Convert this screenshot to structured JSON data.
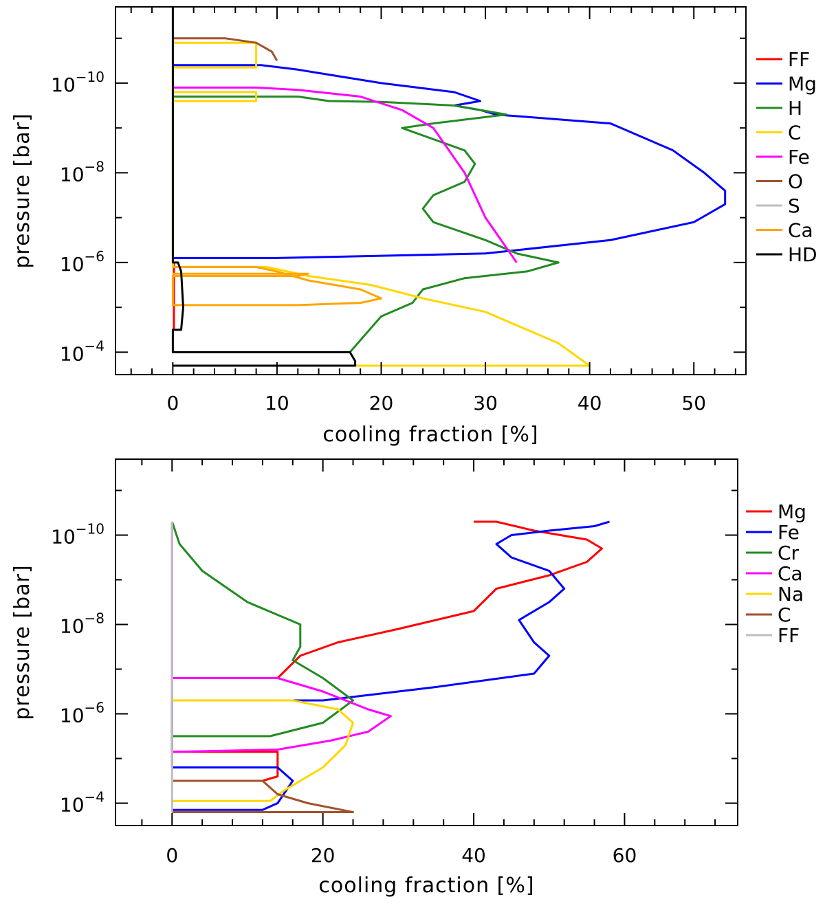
{
  "chart_data": [
    {
      "type": "line",
      "xlabel": "cooling fraction [%]",
      "ylabel": "pressure [bar]",
      "xlim": [
        -5.5,
        55
      ],
      "ylim_log10": [
        -11.7,
        -3.5
      ],
      "x_ticks": [
        0,
        10,
        20,
        30,
        40,
        50
      ],
      "x_tick_labels": [
        "0",
        "10",
        "20",
        "30",
        "40",
        "50"
      ],
      "y_ticks_log10": [
        -10,
        -8,
        -6,
        -4
      ],
      "y_tick_labels": [
        {
          "base": "10",
          "exp": "−10"
        },
        {
          "base": "10",
          "exp": "−8"
        },
        {
          "base": "10",
          "exp": "−6"
        },
        {
          "base": "10",
          "exp": "−4"
        }
      ],
      "legend_placement": "right-outside",
      "series": [
        {
          "name": "FF",
          "color": "#ff0000",
          "points": [
            [
              0.0,
              -6.0
            ],
            [
              0.1,
              -6.0
            ],
            [
              0.1,
              -4.5
            ],
            [
              0.0,
              -4.5
            ]
          ]
        },
        {
          "name": "Mg",
          "color": "#0000ff",
          "points": [
            [
              0.0,
              -10.4
            ],
            [
              8.5,
              -10.4
            ],
            [
              12,
              -10.3
            ],
            [
              20,
              -10.0
            ],
            [
              27,
              -9.8
            ],
            [
              29.5,
              -9.6
            ],
            [
              27,
              -9.5
            ],
            [
              29.5,
              -9.4
            ],
            [
              31,
              -9.3
            ],
            [
              42,
              -9.1
            ],
            [
              48,
              -8.5
            ],
            [
              51,
              -8.0
            ],
            [
              53,
              -7.6
            ],
            [
              53,
              -7.3
            ],
            [
              50,
              -6.9
            ],
            [
              42,
              -6.5
            ],
            [
              30,
              -6.2
            ],
            [
              20,
              -6.15
            ],
            [
              10,
              -6.1
            ],
            [
              0.0,
              -6.1
            ]
          ]
        },
        {
          "name": "H",
          "color": "#228b22",
          "points": [
            [
              0.0,
              -9.7
            ],
            [
              12,
              -9.7
            ],
            [
              15,
              -9.6
            ],
            [
              20,
              -9.58
            ],
            [
              27,
              -9.5
            ],
            [
              32,
              -9.3
            ],
            [
              25,
              -9.1
            ],
            [
              22,
              -9.0
            ],
            [
              28,
              -8.5
            ],
            [
              29,
              -8.2
            ],
            [
              28,
              -7.8
            ],
            [
              25,
              -7.5
            ],
            [
              24,
              -7.2
            ],
            [
              25,
              -6.9
            ],
            [
              30,
              -6.5
            ],
            [
              33,
              -6.2
            ],
            [
              37,
              -6.0
            ],
            [
              34,
              -5.8
            ],
            [
              28,
              -5.65
            ],
            [
              24,
              -5.4
            ],
            [
              23,
              -5.1
            ],
            [
              20,
              -4.8
            ],
            [
              17,
              -4.0
            ]
          ]
        },
        {
          "name": "C",
          "color": "#ffd700",
          "points": [
            [
              0.0,
              -10.9
            ],
            [
              8,
              -10.9
            ],
            [
              8,
              -10.35
            ],
            [
              0.0,
              -10.35
            ],
            [
              0.0,
              -9.8
            ],
            [
              8,
              -9.8
            ],
            [
              8,
              -9.6
            ],
            [
              0.0,
              -9.6
            ],
            [
              0.0,
              -5.9
            ],
            [
              9,
              -5.9
            ],
            [
              13,
              -5.7
            ],
            [
              19,
              -5.5
            ],
            [
              24,
              -5.2
            ],
            [
              30,
              -4.9
            ],
            [
              34,
              -4.5
            ],
            [
              37,
              -4.2
            ],
            [
              40,
              -3.7
            ],
            [
              0.0,
              -3.7
            ]
          ]
        },
        {
          "name": "Fe",
          "color": "#ff00ff",
          "points": [
            [
              0.0,
              -9.9
            ],
            [
              8,
              -9.9
            ],
            [
              12,
              -9.85
            ],
            [
              18,
              -9.7
            ],
            [
              22,
              -9.4
            ],
            [
              25,
              -9.0
            ],
            [
              28,
              -8.0
            ],
            [
              30,
              -7.0
            ],
            [
              33,
              -6.0
            ]
          ]
        },
        {
          "name": "O",
          "color": "#a0522d",
          "points": [
            [
              0.0,
              -11.0
            ],
            [
              5,
              -11.0
            ],
            [
              8,
              -10.9
            ],
            [
              9.5,
              -10.7
            ],
            [
              10,
              -10.5
            ]
          ]
        },
        {
          "name": "S",
          "color": "#bebebe",
          "points": []
        },
        {
          "name": "Ca",
          "color": "#ffa500",
          "points": [
            [
              0.0,
              -5.9
            ],
            [
              8,
              -5.9
            ],
            [
              10,
              -5.8
            ],
            [
              13,
              -5.6
            ],
            [
              18,
              -5.4
            ],
            [
              20,
              -5.2
            ],
            [
              18,
              -5.1
            ],
            [
              12,
              -5.05
            ],
            [
              0.0,
              -5.05
            ],
            [
              0.0,
              -5.7
            ],
            [
              12,
              -5.7
            ],
            [
              13,
              -5.75
            ],
            [
              0.0,
              -5.75
            ]
          ]
        },
        {
          "name": "HD",
          "color": "#000000",
          "points": [
            [
              0.0,
              -11.7
            ],
            [
              0.0,
              -6.0
            ],
            [
              0.5,
              -6.0
            ],
            [
              0.8,
              -5.8
            ],
            [
              1.0,
              -5.0
            ],
            [
              0.8,
              -4.5
            ],
            [
              0.5,
              -4.5
            ],
            [
              0.0,
              -4.5
            ],
            [
              0.0,
              -4.0
            ],
            [
              17,
              -4.0
            ],
            [
              17.5,
              -3.8
            ],
            [
              17.5,
              -3.7
            ],
            [
              0.0,
              -3.7
            ]
          ]
        }
      ]
    },
    {
      "type": "line",
      "xlabel": "cooling fraction [%]",
      "ylabel": "pressure [bar]",
      "xlim": [
        -7.5,
        75
      ],
      "ylim_log10": [
        -11.7,
        -3.5
      ],
      "x_ticks": [
        0,
        20,
        40,
        60
      ],
      "x_tick_labels": [
        "0",
        "20",
        "40",
        "60"
      ],
      "y_ticks_log10": [
        -10,
        -8,
        -6,
        -4
      ],
      "y_tick_labels": [
        {
          "base": "10",
          "exp": "−10"
        },
        {
          "base": "10",
          "exp": "−8"
        },
        {
          "base": "10",
          "exp": "−6"
        },
        {
          "base": "10",
          "exp": "−4"
        }
      ],
      "legend_placement": "right-outside",
      "series": [
        {
          "name": "Mg",
          "color": "#ff0000",
          "points": [
            [
              40,
              -10.3
            ],
            [
              43,
              -10.3
            ],
            [
              48,
              -10.1
            ],
            [
              55,
              -9.9
            ],
            [
              57,
              -9.7
            ],
            [
              55,
              -9.4
            ],
            [
              50,
              -9.1
            ],
            [
              43,
              -8.8
            ],
            [
              40,
              -8.3
            ],
            [
              30,
              -7.9
            ],
            [
              22,
              -7.6
            ],
            [
              17,
              -7.3
            ],
            [
              14,
              -6.8
            ],
            [
              0.0,
              -6.8
            ],
            [
              0.0,
              -5.15
            ],
            [
              14,
              -5.15
            ],
            [
              14,
              -4.6
            ],
            [
              12,
              -4.5
            ],
            [
              0.0,
              -4.5
            ]
          ]
        },
        {
          "name": "Fe",
          "color": "#0000ff",
          "points": [
            [
              58,
              -10.3
            ],
            [
              56,
              -10.2
            ],
            [
              50,
              -10.1
            ],
            [
              45,
              -10.0
            ],
            [
              43,
              -9.8
            ],
            [
              45,
              -9.5
            ],
            [
              50,
              -9.2
            ],
            [
              52,
              -8.8
            ],
            [
              50,
              -8.5
            ],
            [
              46,
              -8.1
            ],
            [
              48,
              -7.6
            ],
            [
              50,
              -7.3
            ],
            [
              48,
              -6.9
            ],
            [
              35,
              -6.6
            ],
            [
              20,
              -6.3
            ],
            [
              15,
              -6.3
            ],
            [
              0.0,
              -6.3
            ],
            [
              0.0,
              -4.8
            ],
            [
              14,
              -4.8
            ],
            [
              16,
              -4.5
            ],
            [
              14,
              -4.0
            ],
            [
              12,
              -3.85
            ],
            [
              0.0,
              -3.85
            ]
          ]
        },
        {
          "name": "Cr",
          "color": "#228b22",
          "points": [
            [
              0.0,
              -10.3
            ],
            [
              1,
              -9.8
            ],
            [
              4,
              -9.2
            ],
            [
              10,
              -8.5
            ],
            [
              17,
              -8.0
            ],
            [
              17,
              -7.5
            ],
            [
              16,
              -7.2
            ],
            [
              20,
              -6.8
            ],
            [
              24,
              -6.3
            ],
            [
              20,
              -5.8
            ],
            [
              13,
              -5.5
            ],
            [
              0.0,
              -5.5
            ]
          ]
        },
        {
          "name": "Ca",
          "color": "#ff00ff",
          "points": [
            [
              0.0,
              -10.3
            ],
            [
              0.0,
              -6.8
            ],
            [
              14,
              -6.8
            ],
            [
              20,
              -6.5
            ],
            [
              26,
              -6.1
            ],
            [
              29,
              -5.95
            ],
            [
              26,
              -5.6
            ],
            [
              21,
              -5.4
            ],
            [
              14,
              -5.2
            ],
            [
              0.0,
              -5.15
            ]
          ]
        },
        {
          "name": "Na",
          "color": "#ffd700",
          "points": [
            [
              0.0,
              -6.3
            ],
            [
              16,
              -6.3
            ],
            [
              22,
              -6.1
            ],
            [
              24,
              -5.8
            ],
            [
              23,
              -5.3
            ],
            [
              20,
              -4.8
            ],
            [
              15,
              -4.3
            ],
            [
              13,
              -4.05
            ],
            [
              0.0,
              -4.05
            ]
          ]
        },
        {
          "name": "C",
          "color": "#a0522d",
          "points": [
            [
              0.0,
              -4.5
            ],
            [
              12,
              -4.5
            ],
            [
              14,
              -4.2
            ],
            [
              18,
              -4.0
            ],
            [
              24,
              -3.8
            ],
            [
              0.0,
              -3.8
            ]
          ]
        },
        {
          "name": "FF",
          "color": "#bebebe",
          "points": [
            [
              0.0,
              -10.3
            ],
            [
              0.0,
              -3.8
            ]
          ]
        }
      ]
    }
  ]
}
